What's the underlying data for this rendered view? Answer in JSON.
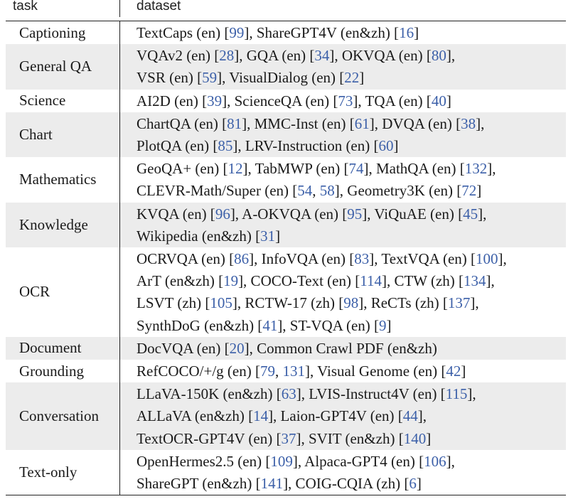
{
  "header": {
    "task": "task",
    "dataset": "dataset"
  },
  "rows": [
    {
      "task": "Captioning",
      "lines": [
        [
          {
            "t": "TextCaps (en) ["
          },
          {
            "c": "99"
          },
          {
            "t": "], ShareGPT4V (en&zh) ["
          },
          {
            "c": "16"
          },
          {
            "t": "]"
          }
        ]
      ]
    },
    {
      "task": "General QA",
      "lines": [
        [
          {
            "t": "VQAv2 (en) ["
          },
          {
            "c": "28"
          },
          {
            "t": "], GQA (en) ["
          },
          {
            "c": "34"
          },
          {
            "t": "], OKVQA (en) ["
          },
          {
            "c": "80"
          },
          {
            "t": "],"
          }
        ],
        [
          {
            "t": "VSR (en) ["
          },
          {
            "c": "59"
          },
          {
            "t": "], VisualDialog (en) ["
          },
          {
            "c": "22"
          },
          {
            "t": "]"
          }
        ]
      ]
    },
    {
      "task": "Science",
      "lines": [
        [
          {
            "t": "AI2D (en) ["
          },
          {
            "c": "39"
          },
          {
            "t": "], ScienceQA (en) ["
          },
          {
            "c": "73"
          },
          {
            "t": "], TQA (en) ["
          },
          {
            "c": "40"
          },
          {
            "t": "]"
          }
        ]
      ]
    },
    {
      "task": "Chart",
      "lines": [
        [
          {
            "t": "ChartQA (en) ["
          },
          {
            "c": "81"
          },
          {
            "t": "], MMC-Inst (en) ["
          },
          {
            "c": "61"
          },
          {
            "t": "], DVQA (en) ["
          },
          {
            "c": "38"
          },
          {
            "t": "],"
          }
        ],
        [
          {
            "t": "PlotQA (en) ["
          },
          {
            "c": "85"
          },
          {
            "t": "], LRV-Instruction (en) ["
          },
          {
            "c": "60"
          },
          {
            "t": "]"
          }
        ]
      ]
    },
    {
      "task": "Mathematics",
      "lines": [
        [
          {
            "t": "GeoQA+ (en) ["
          },
          {
            "c": "12"
          },
          {
            "t": "], TabMWP (en) ["
          },
          {
            "c": "74"
          },
          {
            "t": "], MathQA (en) ["
          },
          {
            "c": "132"
          },
          {
            "t": "],"
          }
        ],
        [
          {
            "t": "CLEVR-Math/Super (en) ["
          },
          {
            "c": "54"
          },
          {
            "t": ", "
          },
          {
            "c": "58"
          },
          {
            "t": "], Geometry3K (en) ["
          },
          {
            "c": "72"
          },
          {
            "t": "]"
          }
        ]
      ]
    },
    {
      "task": "Knowledge",
      "lines": [
        [
          {
            "t": "KVQA (en) ["
          },
          {
            "c": "96"
          },
          {
            "t": "], A-OKVQA (en) ["
          },
          {
            "c": "95"
          },
          {
            "t": "], ViQuAE (en) ["
          },
          {
            "c": "45"
          },
          {
            "t": "],"
          }
        ],
        [
          {
            "t": "Wikipedia (en&zh) ["
          },
          {
            "c": "31"
          },
          {
            "t": "]"
          }
        ]
      ]
    },
    {
      "task": "OCR",
      "lines": [
        [
          {
            "t": "OCRVQA (en) ["
          },
          {
            "c": "86"
          },
          {
            "t": "], InfoVQA (en) ["
          },
          {
            "c": "83"
          },
          {
            "t": "], TextVQA (en) ["
          },
          {
            "c": "100"
          },
          {
            "t": "],"
          }
        ],
        [
          {
            "t": "ArT (en&zh) ["
          },
          {
            "c": "19"
          },
          {
            "t": "], COCO-Text (en) ["
          },
          {
            "c": "114"
          },
          {
            "t": "], CTW (zh) ["
          },
          {
            "c": "134"
          },
          {
            "t": "],"
          }
        ],
        [
          {
            "t": "LSVT (zh) ["
          },
          {
            "c": "105"
          },
          {
            "t": "], RCTW-17 (zh) ["
          },
          {
            "c": "98"
          },
          {
            "t": "], ReCTs (zh) ["
          },
          {
            "c": "137"
          },
          {
            "t": "],"
          }
        ],
        [
          {
            "t": "SynthDoG (en&zh) ["
          },
          {
            "c": "41"
          },
          {
            "t": "], ST-VQA (en) ["
          },
          {
            "c": "9"
          },
          {
            "t": "]"
          }
        ]
      ]
    },
    {
      "task": "Document",
      "lines": [
        [
          {
            "t": "DocVQA (en) ["
          },
          {
            "c": "20"
          },
          {
            "t": "], Common Crawl PDF (en&zh)"
          }
        ]
      ]
    },
    {
      "task": "Grounding",
      "lines": [
        [
          {
            "t": "RefCOCO/+/g (en) ["
          },
          {
            "c": "79"
          },
          {
            "t": ", "
          },
          {
            "c": "131"
          },
          {
            "t": "], Visual Genome (en) ["
          },
          {
            "c": "42"
          },
          {
            "t": "]"
          }
        ]
      ]
    },
    {
      "task": "Conversation",
      "lines": [
        [
          {
            "t": "LLaVA-150K (en&zh) ["
          },
          {
            "c": "63"
          },
          {
            "t": "], LVIS-Instruct4V (en) ["
          },
          {
            "c": "115"
          },
          {
            "t": "],"
          }
        ],
        [
          {
            "t": "ALLaVA (en&zh) ["
          },
          {
            "c": "14"
          },
          {
            "t": "], Laion-GPT4V (en) ["
          },
          {
            "c": "44"
          },
          {
            "t": "],"
          }
        ],
        [
          {
            "t": "TextOCR-GPT4V (en) ["
          },
          {
            "c": "37"
          },
          {
            "t": "], SVIT (en&zh) ["
          },
          {
            "c": "140"
          },
          {
            "t": "]"
          }
        ]
      ]
    },
    {
      "task": "Text-only",
      "lines": [
        [
          {
            "t": "OpenHermes2.5 (en) ["
          },
          {
            "c": "109"
          },
          {
            "t": "], Alpaca-GPT4 (en) ["
          },
          {
            "c": "106"
          },
          {
            "t": "],"
          }
        ],
        [
          {
            "t": "ShareGPT (en&zh) ["
          },
          {
            "c": "141"
          },
          {
            "t": "], COIG-CQIA (zh) ["
          },
          {
            "c": "6"
          },
          {
            "t": "]"
          }
        ]
      ]
    }
  ]
}
